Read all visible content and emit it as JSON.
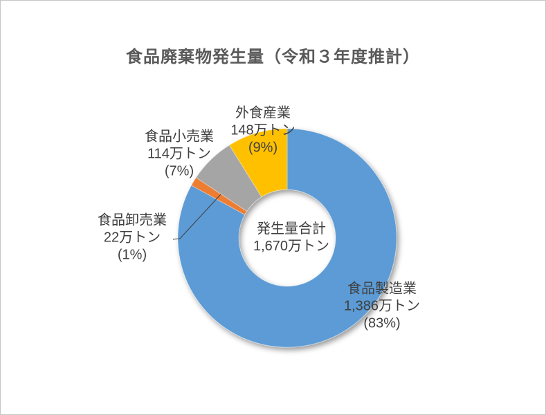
{
  "header": {
    "title": "食品廃棄物発生量（令和３年度推計）"
  },
  "chart_data": {
    "type": "pie",
    "subtype": "donut",
    "title": "食品廃棄物発生量（令和３年度推計）",
    "categories": [
      "食品製造業",
      "食品卸売業",
      "食品小売業",
      "外食産業"
    ],
    "values": [
      1386,
      22,
      114,
      148
    ],
    "percents": [
      83,
      1,
      7,
      9
    ],
    "unit": "万トン",
    "total": 1670,
    "colors": [
      "#5B9BD5",
      "#ED7D31",
      "#A5A5A5",
      "#FFC000"
    ],
    "start_angle_deg": 0,
    "direction": "clockwise",
    "donut_hole_ratio": 0.45,
    "legend_position": "none",
    "gridlines": false,
    "slice_labels": [
      {
        "name": "食品製造業",
        "amount": "1,386万トン",
        "percent": "(83%)"
      },
      {
        "name": "食品卸売業",
        "amount": "22万トン",
        "percent": "(1%)"
      },
      {
        "name": "食品小売業",
        "amount": "114万トン",
        "percent": "(7%)"
      },
      {
        "name": "外食産業",
        "amount": "148万トン",
        "percent": "(9%)"
      }
    ],
    "center_label": {
      "line1": "発生量合計",
      "line2": "1,670万トン"
    }
  }
}
